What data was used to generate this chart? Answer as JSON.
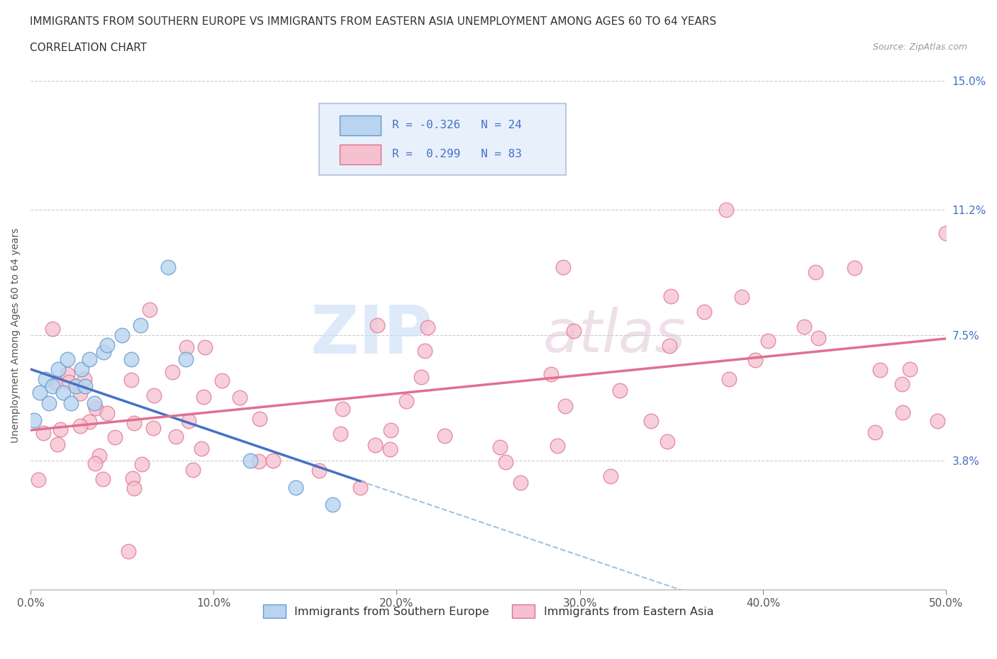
{
  "title_line1": "IMMIGRANTS FROM SOUTHERN EUROPE VS IMMIGRANTS FROM EASTERN ASIA UNEMPLOYMENT AMONG AGES 60 TO 64 YEARS",
  "title_line2": "CORRELATION CHART",
  "source_text": "Source: ZipAtlas.com",
  "ylabel": "Unemployment Among Ages 60 to 64 years",
  "xlim": [
    0,
    0.5
  ],
  "ylim": [
    0,
    0.15
  ],
  "yticks": [
    0.038,
    0.075,
    0.112,
    0.15
  ],
  "ytick_labels": [
    "3.8%",
    "7.5%",
    "11.2%",
    "15.0%"
  ],
  "xticks": [
    0.0,
    0.1,
    0.2,
    0.3,
    0.4,
    0.5
  ],
  "xtick_labels": [
    "0.0%",
    "10.0%",
    "20.0%",
    "30.0%",
    "40.0%",
    "50.0%"
  ],
  "watermark": "ZIPAtlas",
  "series": [
    {
      "name": "Immigrants from Southern Europe",
      "R": -0.326,
      "N": 24,
      "color": "#b8d4f0",
      "edge_color": "#6699cc",
      "line_color": "#4472c4",
      "line_style": "-"
    },
    {
      "name": "Immigrants from Eastern Asia",
      "R": 0.299,
      "N": 83,
      "color": "#f5c0d0",
      "edge_color": "#e07090",
      "line_color": "#e07090",
      "line_style": "-"
    }
  ],
  "legend_R_color": "#4472c4",
  "background_color": "#ffffff",
  "grid_color": "#cccccc",
  "title_fontsize": 11,
  "axis_label_fontsize": 10,
  "tick_fontsize": 11,
  "legend_box_color": "#e8f0fc",
  "legend_border_color": "#b0c0e0"
}
